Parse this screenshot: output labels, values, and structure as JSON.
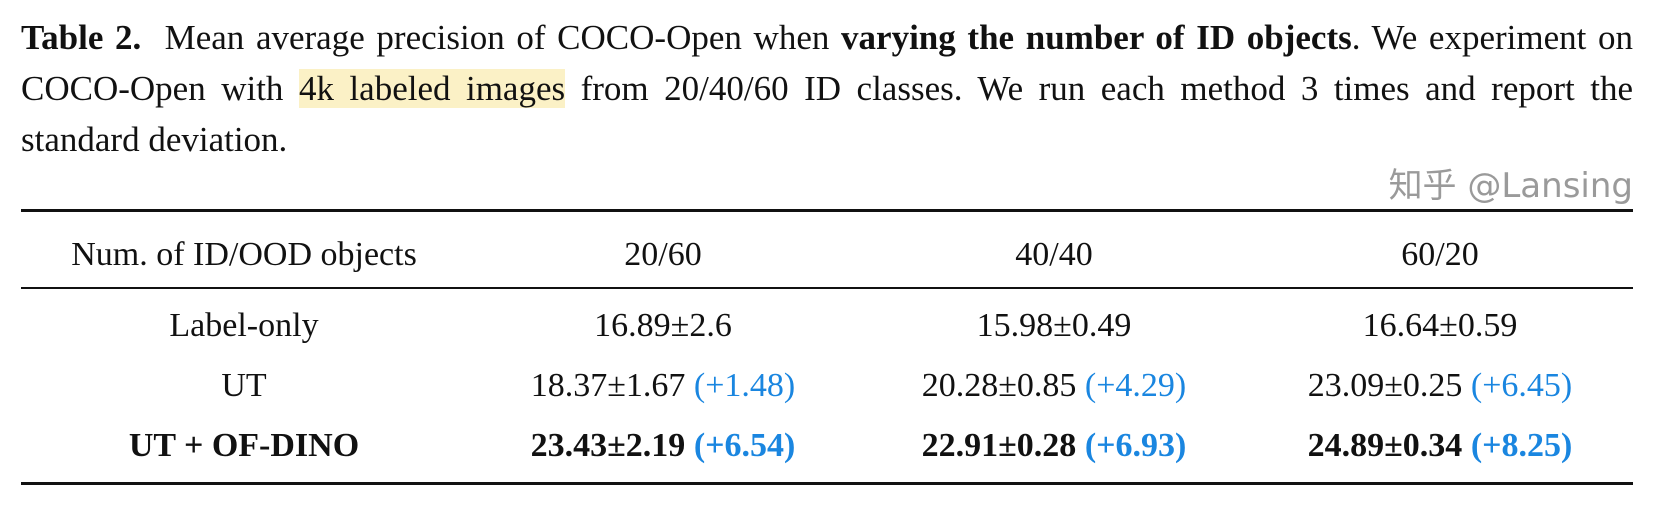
{
  "caption": {
    "label": "Table 2.",
    "text1": "Mean average precision of COCO-Open when",
    "bold1": "varying the number of ID objects",
    "text2": ". We experiment on COCO-Open with",
    "highlight": "4k labeled images",
    "text3": "from 20/40/60 ID classes. We run each method 3 times and report the standard deviation."
  },
  "table": {
    "headers": [
      "Num. of ID/OOD objects",
      "20/60",
      "40/40",
      "60/20"
    ],
    "rows": [
      {
        "method": "Label-only",
        "bold": false,
        "cells": [
          {
            "value": "16.89±2.6",
            "delta": ""
          },
          {
            "value": "15.98±0.49",
            "delta": ""
          },
          {
            "value": "16.64±0.59",
            "delta": ""
          }
        ]
      },
      {
        "method": "UT",
        "bold": false,
        "cells": [
          {
            "value": "18.37±1.67",
            "delta": "(+1.48)"
          },
          {
            "value": "20.28±0.85",
            "delta": "(+4.29)"
          },
          {
            "value": "23.09±0.25",
            "delta": "(+6.45)"
          }
        ]
      },
      {
        "method": "UT + OF-DINO",
        "bold": true,
        "cells": [
          {
            "value": "23.43±2.19",
            "delta": "(+6.54)"
          },
          {
            "value": "22.91±0.28",
            "delta": "(+6.93)"
          },
          {
            "value": "24.89±0.34",
            "delta": "(+8.25)"
          }
        ]
      }
    ]
  },
  "colors": {
    "delta": "#1a86e0",
    "highlight": "#fbf1c6"
  },
  "watermark": "知乎 @Lansing"
}
